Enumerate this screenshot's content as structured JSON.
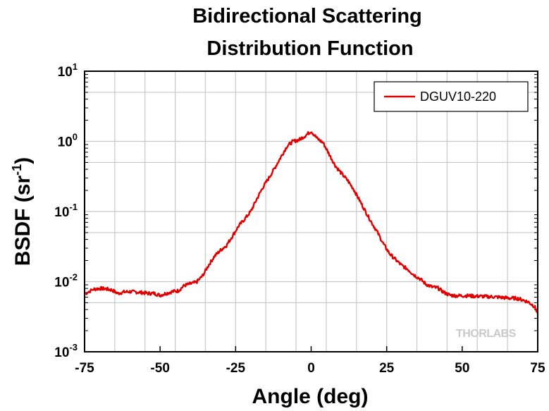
{
  "chart_data": {
    "type": "line",
    "title_lines": [
      "Bidirectional Scattering",
      "Distribution Function"
    ],
    "xlabel": "Angle (deg)",
    "ylabel": "BSDF (sr",
    "ylabel_sup": "-1",
    "ylabel_close": ")",
    "xlim": [
      -75,
      75
    ],
    "ylim": [
      0.001,
      10
    ],
    "yscale": "log",
    "grid": true,
    "legend_position": "top-right",
    "x_ticks": [
      "-75",
      "-50",
      "-25",
      "0",
      "25",
      "50",
      "75"
    ],
    "y_ticks": [
      {
        "base": "10",
        "exp": "1"
      },
      {
        "base": "10",
        "exp": "0"
      },
      {
        "base": "10",
        "exp": "-1"
      },
      {
        "base": "10",
        "exp": "-2"
      },
      {
        "base": "10",
        "exp": "-3"
      }
    ],
    "series": [
      {
        "name": "DGUV10-220",
        "color": "#e00000",
        "x": [
          -75,
          -72,
          -70,
          -68,
          -66,
          -64,
          -62,
          -60,
          -58,
          -56,
          -54,
          -52,
          -50,
          -48,
          -46,
          -44,
          -42,
          -40,
          -38,
          -36,
          -34,
          -32,
          -30,
          -28,
          -26,
          -24,
          -22,
          -20,
          -18,
          -16,
          -14,
          -12,
          -10,
          -8,
          -6,
          -4,
          -2,
          0,
          2,
          4,
          6,
          8,
          10,
          12,
          14,
          16,
          18,
          20,
          22,
          24,
          26,
          28,
          30,
          32,
          34,
          36,
          38,
          40,
          42,
          44,
          46,
          48,
          50,
          52,
          54,
          56,
          58,
          60,
          62,
          64,
          66,
          68,
          70,
          72,
          74,
          75
        ],
        "y": [
          0.0067,
          0.0078,
          0.008,
          0.0079,
          0.0076,
          0.0068,
          0.0071,
          0.0072,
          0.0071,
          0.007,
          0.0068,
          0.0068,
          0.0064,
          0.0068,
          0.0072,
          0.0074,
          0.0088,
          0.0093,
          0.0098,
          0.012,
          0.017,
          0.023,
          0.028,
          0.033,
          0.045,
          0.062,
          0.078,
          0.1,
          0.15,
          0.22,
          0.3,
          0.42,
          0.6,
          0.85,
          1.0,
          1.05,
          1.2,
          1.4,
          1.1,
          0.95,
          0.65,
          0.45,
          0.35,
          0.28,
          0.21,
          0.145,
          0.1,
          0.07,
          0.05,
          0.034,
          0.025,
          0.0205,
          0.017,
          0.015,
          0.0125,
          0.011,
          0.0092,
          0.0084,
          0.0081,
          0.007,
          0.0064,
          0.0063,
          0.0063,
          0.0063,
          0.0062,
          0.0062,
          0.0061,
          0.0061,
          0.006,
          0.0059,
          0.0058,
          0.0058,
          0.0055,
          0.0051,
          0.0044,
          0.0035
        ]
      }
    ],
    "watermark": "THORLABS"
  }
}
